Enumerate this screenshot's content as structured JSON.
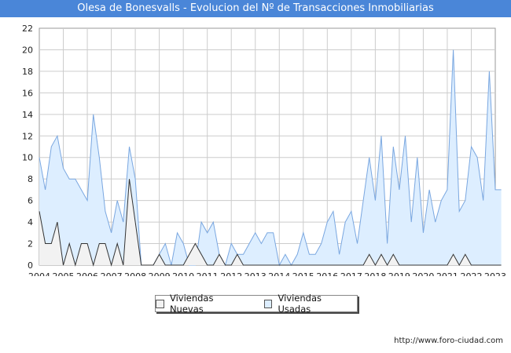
{
  "title": "Olesa de Bonesvalls - Evolucion del Nº de Transacciones Inmobiliarias",
  "footer": {
    "url": "http://www.foro-ciudad.com"
  },
  "colors": {
    "title_bg": "#4a86d8",
    "usadas_fill": "#ddeeff",
    "usadas_line": "#7aa7e0",
    "nuevas_fill": "#f2f2f2",
    "nuevas_line": "#333333",
    "grid": "#cccccc"
  },
  "legend": {
    "nuevas": "Viviendas Nuevas",
    "usadas": "Viviendas Usadas"
  },
  "chart_data": {
    "type": "area",
    "x_unit": "quarter",
    "start": "2004-Q1",
    "xlim": [
      2004,
      2023
    ],
    "ylim": [
      0,
      22
    ],
    "yticks": [
      0,
      2,
      4,
      6,
      8,
      10,
      12,
      14,
      16,
      18,
      20,
      22
    ],
    "xticks": [
      "2004",
      "2005",
      "2006",
      "2007",
      "2008",
      "2009",
      "2010",
      "2011",
      "2012",
      "2013",
      "2014",
      "2015",
      "2016",
      "2017",
      "2018",
      "2019",
      "2020",
      "2021",
      "2022",
      "2023"
    ],
    "grid": true,
    "legend_position": "bottom",
    "series": [
      {
        "name": "Viviendas Usadas",
        "values": [
          10,
          7,
          11,
          12,
          9,
          8,
          8,
          7,
          6,
          14,
          10,
          5,
          3,
          6,
          4,
          11,
          8,
          0,
          0,
          0,
          1,
          2,
          0,
          3,
          2,
          0,
          0,
          4,
          3,
          4,
          1,
          0,
          2,
          1,
          1,
          2,
          3,
          2,
          3,
          3,
          0,
          1,
          0,
          1,
          3,
          1,
          1,
          2,
          4,
          5,
          1,
          4,
          5,
          2,
          6,
          10,
          6,
          12,
          2,
          11,
          7,
          12,
          4,
          10,
          3,
          7,
          4,
          6,
          7,
          20,
          5,
          6,
          11,
          10,
          6,
          18,
          7,
          7
        ]
      },
      {
        "name": "Viviendas Nuevas",
        "values": [
          5,
          2,
          2,
          4,
          0,
          2,
          0,
          2,
          2,
          0,
          2,
          2,
          0,
          2,
          0,
          8,
          4,
          0,
          0,
          0,
          1,
          0,
          0,
          0,
          0,
          1,
          2,
          1,
          0,
          0,
          1,
          0,
          0,
          1,
          0,
          0,
          0,
          0,
          0,
          0,
          0,
          0,
          0,
          0,
          0,
          0,
          0,
          0,
          0,
          0,
          0,
          0,
          0,
          0,
          0,
          1,
          0,
          1,
          0,
          1,
          0,
          0,
          0,
          0,
          0,
          0,
          0,
          0,
          0,
          1,
          0,
          1,
          0,
          0,
          0,
          0,
          0,
          0
        ]
      }
    ]
  }
}
